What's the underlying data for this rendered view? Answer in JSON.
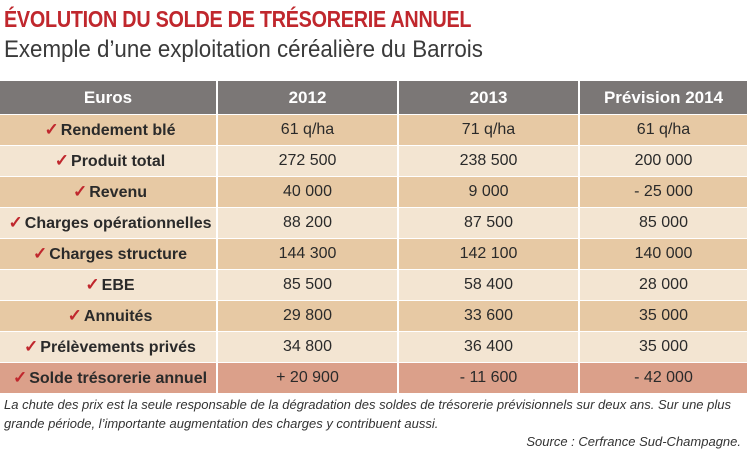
{
  "header": {
    "title": "ÉVOLUTION DU SOLDE DE TRÉSORERIE ANNUEL",
    "subtitle": "Exemple d’une exploitation céréalière du Barrois"
  },
  "table": {
    "columns": [
      "Euros",
      "2012",
      "2013",
      "Prévision 2014"
    ],
    "rows": [
      {
        "label": "Rendement blé",
        "values": [
          "61 q/ha",
          "71 q/ha",
          "61 q/ha"
        ]
      },
      {
        "label": "Produit total",
        "values": [
          "272 500",
          "238 500",
          "200 000"
        ]
      },
      {
        "label": "Revenu",
        "values": [
          "40 000",
          "9 000",
          "- 25 000"
        ]
      },
      {
        "label": "Charges opérationnelles",
        "values": [
          "88 200",
          "87 500",
          "85 000"
        ]
      },
      {
        "label": "Charges structure",
        "values": [
          "144 300",
          "142 100",
          "140 000"
        ]
      },
      {
        "label": "EBE",
        "values": [
          "85 500",
          "58 400",
          "28 000"
        ]
      },
      {
        "label": "Annuités",
        "values": [
          "29 800",
          "33 600",
          "35 000"
        ]
      },
      {
        "label": "Prélèvements privés",
        "values": [
          "34 800",
          "36 400",
          "35 000"
        ]
      },
      {
        "label": "Solde trésorerie annuel",
        "values": [
          "+ 20 900",
          "- 11 600",
          "- 42 000"
        ]
      }
    ],
    "check_icon": "checkmark-icon",
    "colors": {
      "header": "#7b7776",
      "row_odd": "#e7c9a4",
      "row_even": "#f3e5d2",
      "row_total": "#dba08a",
      "accent": "#c0272d"
    }
  },
  "footer": {
    "note": "La chute des prix est la seule responsable de la dégradation des soldes de trésorerie prévisionnels sur deux ans. Sur une plus grande période, l’importante augmentation des charges y contribuent aussi.",
    "source": "Source : Cerfrance Sud-Champagne."
  }
}
